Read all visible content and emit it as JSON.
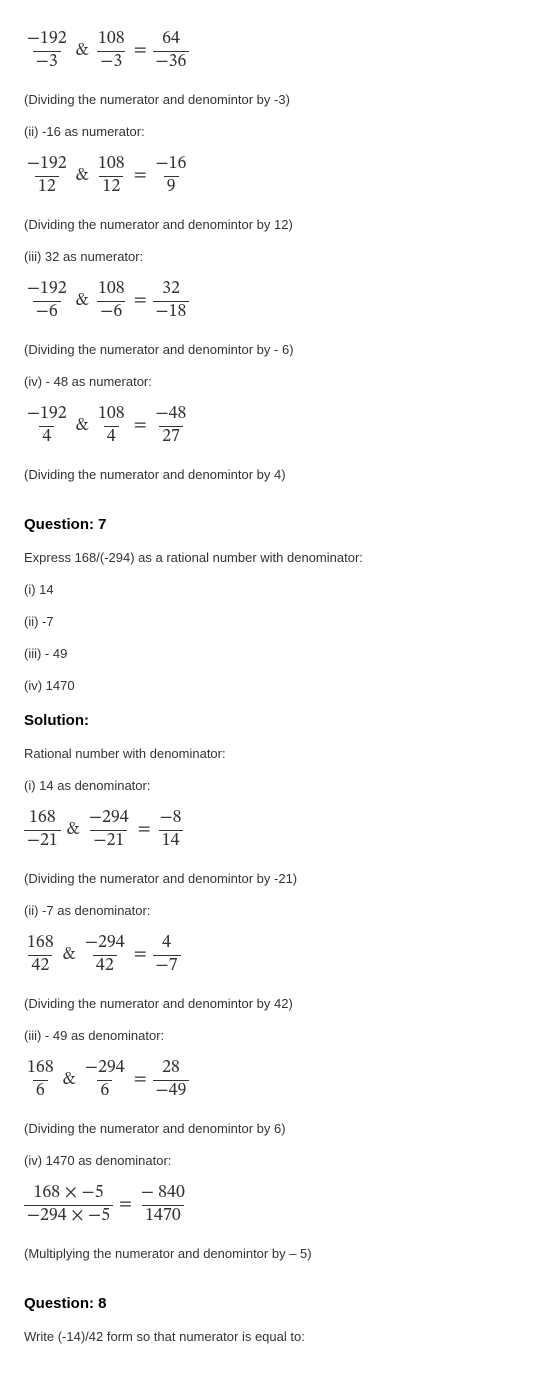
{
  "eq1": {
    "f1n": "−192",
    "f1d": "−3",
    "f2n": "108",
    "f2d": "−3",
    "f3n": "64",
    "f3d": "−36"
  },
  "p1": "(Dividing the numerator and denomintor by -3)",
  "p2": "(ii) -16 as numerator:",
  "eq2": {
    "f1n": "−192",
    "f1d": "12",
    "f2n": "108",
    "f2d": "12",
    "f3n": "−16",
    "f3d": "9"
  },
  "p3": "(Dividing the numerator and denomintor by 12)",
  "p4": "(iii) 32 as numerator:",
  "eq3": {
    "f1n": "−192",
    "f1d": "−6",
    "f2n": "108",
    "f2d": "−6",
    "f3n": "32",
    "f3d": "−18"
  },
  "p5": "(Dividing the numerator and denomintor by - 6)",
  "p6": "(iv) - 48 as numerator:",
  "eq4": {
    "f1n": "−192",
    "f1d": "4",
    "f2n": "108",
    "f2d": "4",
    "f3n": "−48",
    "f3d": "27"
  },
  "p7": "(Dividing the numerator and denomintor by 4)",
  "q7": "Question: 7",
  "q7_stmt": "Express  168/(-294)  as a rational number with denominator:",
  "q7_i": "(i) 14",
  "q7_ii": "(ii) -7",
  "q7_iii": "(iii) - 49",
  "q7_iv": "(iv) 1470",
  "sol": "Solution:",
  "sol_intro": "Rational number with denominator:",
  "s7_i": "(i) 14 as denominator:",
  "eq5": {
    "f1n": "168",
    "f1d": "−21",
    "f2n": "−294",
    "f2d": "−21",
    "f3n": "−8",
    "f3d": "14"
  },
  "p8": "(Dividing the numerator and denomintor by -21)",
  "s7_ii": "(ii) -7 as denominator:",
  "eq6": {
    "f1n": "168",
    "f1d": "42",
    "f2n": "−294",
    "f2d": "42",
    "f3n": "4",
    "f3d": "−7"
  },
  "p9": "(Dividing the numerator and denomintor by 42)",
  "s7_iii": "(iii) - 49 as denominator:",
  "eq7": {
    "f1n": "168",
    "f1d": "6",
    "f2n": "−294",
    "f2d": "6",
    "f3n": "28",
    "f3d": "−49"
  },
  "p10": "(Dividing the numerator and denomintor by 6)",
  "s7_iv": "(iv) 1470 as denominator:",
  "eq8": {
    "f1n": "168 × −5",
    "f1d": "−294 × −5",
    "f3n": "− 840",
    "f3d": "1470"
  },
  "p11": "(Multiplying the numerator and denomintor by – 5)",
  "q8": "Question: 8",
  "q8_stmt": "Write (-14)/42 form so that numerator is equal to:",
  "sym": {
    "amp": "&",
    "eq": "="
  }
}
